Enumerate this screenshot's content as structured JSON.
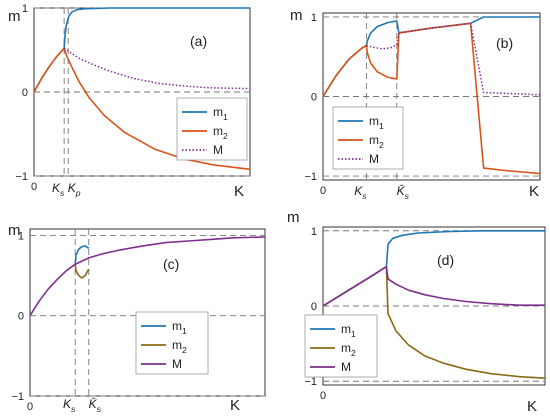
{
  "colors": {
    "m1": "#1f77b4",
    "m2": "#d95319",
    "m2_alt": "#8b6b16",
    "M": "#7e2f8e",
    "axis": "#333333",
    "guide": "#777777"
  },
  "chart_data": [
    {
      "type": "line",
      "panel_label": "(a)",
      "ylabel": "m",
      "xlabel": "K",
      "ylim": [
        -1,
        1
      ],
      "yticks": [
        {
          "v": 1,
          "t": "1"
        },
        {
          "v": 0,
          "t": "0"
        },
        {
          "v": -1,
          "t": "−1"
        }
      ],
      "xticks": [
        {
          "v": 0,
          "t": "0"
        }
      ],
      "markers": [
        {
          "v": 0.6,
          "t": "K_s"
        },
        {
          "v": 0.68,
          "t": "K_p"
        }
      ],
      "hlines": [
        0
      ],
      "legend": [
        "m_1",
        "m_2",
        "M"
      ],
      "series": [
        {
          "name": "m_1",
          "role": "m1",
          "style": "solid",
          "x": [
            0,
            0.15,
            0.3,
            0.45,
            0.6,
            0.62,
            0.64,
            0.67,
            0.7,
            0.75,
            0.85,
            1.0,
            1.5,
            3.0,
            4.3
          ],
          "y": [
            0,
            0.16,
            0.3,
            0.42,
            0.52,
            0.68,
            0.78,
            0.86,
            0.91,
            0.95,
            0.98,
            0.99,
            1.0,
            1.0,
            1.0
          ]
        },
        {
          "name": "m_2",
          "role": "m2",
          "style": "solid",
          "x": [
            0,
            0.15,
            0.3,
            0.45,
            0.6,
            0.65,
            0.75,
            0.9,
            1.1,
            1.4,
            1.8,
            2.4,
            3.0,
            3.6,
            4.3
          ],
          "y": [
            0,
            0.16,
            0.3,
            0.42,
            0.52,
            0.43,
            0.3,
            0.12,
            -0.07,
            -0.28,
            -0.48,
            -0.68,
            -0.8,
            -0.87,
            -0.92
          ]
        },
        {
          "name": "M",
          "role": "M",
          "style": "dotted",
          "x": [
            0.6,
            0.7,
            0.9,
            1.2,
            1.5,
            2.0,
            2.5,
            3.0,
            3.5,
            4.3
          ],
          "y": [
            0.52,
            0.48,
            0.4,
            0.32,
            0.25,
            0.16,
            0.1,
            0.07,
            0.05,
            0.04
          ]
        }
      ]
    },
    {
      "type": "line",
      "panel_label": "(b)",
      "ylabel": "m",
      "xlabel": "K",
      "ylim": [
        -1.05,
        1.05
      ],
      "yticks": [
        {
          "v": 1,
          "t": "1"
        },
        {
          "v": 0,
          "t": "0"
        },
        {
          "v": -1,
          "t": "−1"
        }
      ],
      "xticks": [
        {
          "v": 0,
          "t": "0"
        }
      ],
      "markers": [
        {
          "v": 1.0,
          "t": "K_s"
        },
        {
          "v": 1.7,
          "t": "K̄_s"
        }
      ],
      "hlines": [
        0
      ],
      "legend": [
        "m_1",
        "m_2",
        "M"
      ],
      "series": [
        {
          "name": "m_1",
          "role": "m1",
          "style": "solid",
          "x": [
            0,
            0.3,
            0.6,
            0.9,
            1.0,
            1.02,
            1.1,
            1.25,
            1.5,
            1.7,
            1.75,
            2.5,
            3.4,
            3.7,
            5.0
          ],
          "y": [
            0,
            0.26,
            0.47,
            0.61,
            0.64,
            0.7,
            0.8,
            0.88,
            0.93,
            0.95,
            0.8,
            0.86,
            0.92,
            1.0,
            1.0
          ]
        },
        {
          "name": "m_2",
          "role": "m2",
          "style": "solid",
          "x": [
            0,
            0.3,
            0.6,
            0.9,
            1.0,
            1.02,
            1.1,
            1.25,
            1.5,
            1.7,
            1.75,
            2.5,
            3.4,
            3.7,
            4.2,
            5.0
          ],
          "y": [
            0,
            0.26,
            0.47,
            0.61,
            0.64,
            0.55,
            0.42,
            0.31,
            0.24,
            0.22,
            0.8,
            0.86,
            0.92,
            -0.9,
            -0.93,
            -0.97
          ]
        },
        {
          "name": "M",
          "role": "M",
          "style": "dotted",
          "x": [
            1.0,
            1.15,
            1.35,
            1.55,
            1.7,
            1.75,
            2.5,
            3.4,
            3.7,
            4.2,
            5.0
          ],
          "y": [
            0.64,
            0.62,
            0.6,
            0.61,
            0.65,
            0.8,
            0.86,
            0.92,
            0.05,
            0.04,
            0.02
          ]
        }
      ]
    },
    {
      "type": "line",
      "panel_label": "(c)",
      "ylabel": "m",
      "xlabel": "K",
      "ylim": [
        -1,
        1.08
      ],
      "yticks": [
        {
          "v": 1,
          "t": "1"
        },
        {
          "v": 0,
          "t": "0"
        },
        {
          "v": -1,
          "t": "−1"
        }
      ],
      "xticks": [
        {
          "v": 0,
          "t": "0"
        }
      ],
      "markers": [
        {
          "v": 1.0,
          "t": "K_s"
        },
        {
          "v": 1.3,
          "t": "K̄_s"
        }
      ],
      "hlines": [
        0
      ],
      "legend": [
        "m_1",
        "m_2",
        "M"
      ],
      "series": [
        {
          "name": "m_1",
          "role": "m1",
          "style": "solid",
          "x": [
            1.0,
            1.02,
            1.08,
            1.15,
            1.22,
            1.3
          ],
          "y": [
            0.64,
            0.76,
            0.83,
            0.86,
            0.87,
            0.84
          ]
        },
        {
          "name": "m_2",
          "role": "m2_alt",
          "style": "solid",
          "x": [
            1.0,
            1.02,
            1.08,
            1.15,
            1.22,
            1.3
          ],
          "y": [
            0.64,
            0.56,
            0.5,
            0.47,
            0.5,
            0.58
          ]
        },
        {
          "name": "M",
          "role": "M",
          "style": "solid",
          "x": [
            0,
            0.2,
            0.4,
            0.6,
            0.8,
            1.0,
            1.15,
            1.3,
            1.6,
            2.0,
            2.5,
            3.0,
            3.5,
            4.0,
            4.5,
            5.2
          ],
          "y": [
            0,
            0.18,
            0.33,
            0.45,
            0.56,
            0.64,
            0.68,
            0.72,
            0.77,
            0.82,
            0.87,
            0.91,
            0.93,
            0.95,
            0.97,
            0.98
          ]
        }
      ]
    },
    {
      "type": "line",
      "panel_label": "(d)",
      "ylabel": "m",
      "xlabel": "K",
      "ylim": [
        -1.05,
        1.05
      ],
      "yticks": [
        {
          "v": 1,
          "t": "1"
        },
        {
          "v": 0,
          "t": "0"
        },
        {
          "v": -1,
          "t": "−1"
        }
      ],
      "xticks": [
        {
          "v": 0,
          "t": "0"
        }
      ],
      "markers": [],
      "hlines": [
        0
      ],
      "legend": [
        "m_1",
        "m_2",
        "M"
      ],
      "series": [
        {
          "name": "m_1",
          "role": "m1",
          "style": "solid",
          "x": [
            0,
            0.5,
            1.0,
            1.5,
            1.95,
            2.0,
            2.05,
            2.2,
            2.5,
            3.0,
            4.0,
            5.0,
            6.0,
            7.0
          ],
          "y": [
            0,
            0.13,
            0.26,
            0.39,
            0.51,
            0.52,
            0.82,
            0.9,
            0.94,
            0.97,
            0.99,
            1.0,
            1.0,
            1.0
          ]
        },
        {
          "name": "m_2",
          "role": "m2_alt",
          "style": "solid",
          "x": [
            0,
            0.5,
            1.0,
            1.5,
            1.95,
            2.0,
            2.05,
            2.3,
            2.7,
            3.2,
            3.8,
            4.5,
            5.3,
            6.2,
            7.0
          ],
          "y": [
            0,
            0.13,
            0.26,
            0.39,
            0.51,
            0.52,
            -0.1,
            -0.33,
            -0.52,
            -0.66,
            -0.76,
            -0.84,
            -0.9,
            -0.94,
            -0.96
          ]
        },
        {
          "name": "M",
          "role": "M",
          "style": "solid",
          "x": [
            0,
            0.5,
            1.0,
            1.5,
            1.95,
            2.0,
            2.05,
            2.3,
            2.7,
            3.2,
            3.8,
            4.5,
            5.3,
            6.2,
            7.0
          ],
          "y": [
            0,
            0.13,
            0.26,
            0.39,
            0.51,
            0.52,
            0.36,
            0.29,
            0.21,
            0.15,
            0.1,
            0.06,
            0.03,
            0.01,
            0.01
          ]
        }
      ]
    }
  ]
}
